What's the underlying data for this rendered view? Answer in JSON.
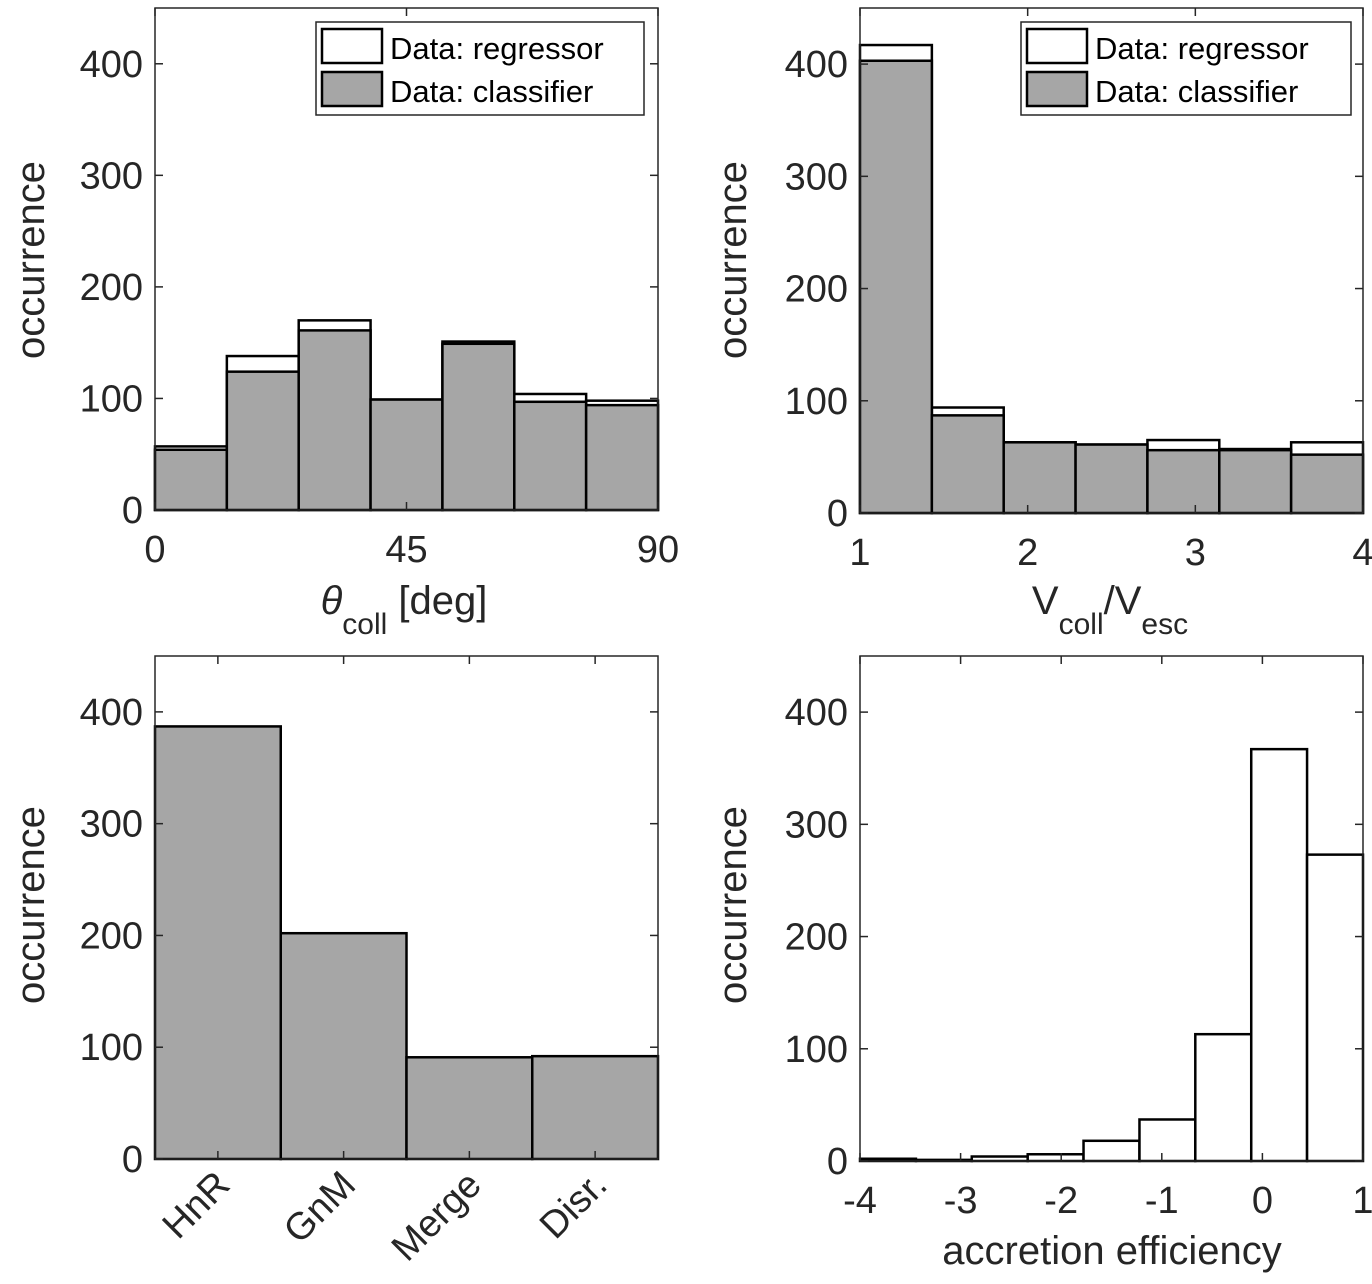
{
  "colors": {
    "regressor_fill": "#ffffff",
    "classifier_fill": "#a6a6a6",
    "edge": "#000000",
    "axis": "#262626"
  },
  "chart_data": [
    {
      "type": "bar",
      "name": "theta-coll-histogram",
      "xlabel": {
        "symbol": "θ",
        "subscript": "coll",
        "suffix": " [deg]"
      },
      "ylabel": "occurrence",
      "xlim": [
        0,
        90
      ],
      "ylim": [
        0,
        450
      ],
      "xticks": [
        0,
        45,
        90
      ],
      "xtick_labels": [
        "0",
        "45",
        "90"
      ],
      "yticks": [
        0,
        100,
        200,
        300,
        400
      ],
      "ytick_labels": [
        "0",
        "100",
        "200",
        "300",
        "400"
      ],
      "bin_edges": [
        0,
        12.857,
        25.714,
        38.571,
        51.429,
        64.286,
        77.143,
        90
      ],
      "series": [
        {
          "name": "Data: regressor",
          "style": "regressor",
          "values": [
            57,
            138,
            170,
            99,
            151,
            104,
            98
          ]
        },
        {
          "name": "Data: classifier",
          "style": "classifier",
          "values": [
            54,
            124,
            161,
            99,
            149,
            97,
            94
          ]
        }
      ],
      "legend": {
        "location": "top-right",
        "entries": [
          "Data: regressor",
          "Data: classifier"
        ]
      }
    },
    {
      "type": "bar",
      "name": "v-ratio-histogram",
      "xlabel": {
        "main1": "V",
        "sub1": "coll",
        "main2": "/V",
        "sub2": "esc"
      },
      "ylabel": "occurrence",
      "xlim": [
        1,
        4
      ],
      "ylim": [
        0,
        450
      ],
      "xticks": [
        1,
        2,
        3,
        4
      ],
      "xtick_labels": [
        "1",
        "2",
        "3",
        "4"
      ],
      "yticks": [
        0,
        100,
        200,
        300,
        400
      ],
      "ytick_labels": [
        "0",
        "100",
        "200",
        "300",
        "400"
      ],
      "bin_edges": [
        1,
        1.4286,
        1.8571,
        2.2857,
        2.7143,
        3.1429,
        3.5714,
        4
      ],
      "series": [
        {
          "name": "Data: regressor",
          "style": "regressor",
          "values": [
            417,
            94,
            63,
            61,
            65,
            57,
            63
          ]
        },
        {
          "name": "Data: classifier",
          "style": "classifier",
          "values": [
            403,
            87,
            63,
            61,
            56,
            56,
            52
          ]
        }
      ],
      "legend": {
        "location": "top-right",
        "entries": [
          "Data: regressor",
          "Data: classifier"
        ]
      }
    },
    {
      "type": "bar",
      "name": "outcome-class-histogram",
      "xlabel": "",
      "ylabel": "occurrence",
      "xlim": [
        0,
        4
      ],
      "ylim": [
        0,
        450
      ],
      "xticks": [
        0.5,
        1.5,
        2.5,
        3.5
      ],
      "xtick_labels": [
        "HnR",
        "GnM",
        "Merge",
        "Disr."
      ],
      "xtick_rotation": -45,
      "yticks": [
        0,
        100,
        200,
        300,
        400
      ],
      "ytick_labels": [
        "0",
        "100",
        "200",
        "300",
        "400"
      ],
      "bin_edges": [
        0,
        1,
        2,
        3,
        4
      ],
      "series": [
        {
          "name": "classifier",
          "style": "classifier",
          "values": [
            387,
            202,
            91,
            92
          ]
        }
      ]
    },
    {
      "type": "bar",
      "name": "accretion-efficiency-histogram",
      "xlabel": "accretion efficiency",
      "ylabel": "occurrence",
      "xlim": [
        -4,
        1
      ],
      "ylim": [
        0,
        450
      ],
      "xticks": [
        -4,
        -3,
        -2,
        -1,
        0,
        1
      ],
      "xtick_labels": [
        "-4",
        "-3",
        "-2",
        "-1",
        "0",
        "1"
      ],
      "yticks": [
        0,
        100,
        200,
        300,
        400
      ],
      "ytick_labels": [
        "0",
        "100",
        "200",
        "300",
        "400"
      ],
      "bin_edges": [
        -4,
        -3.444,
        -2.889,
        -2.333,
        -1.778,
        -1.222,
        -0.667,
        -0.111,
        0.444,
        1
      ],
      "series": [
        {
          "name": "regressor",
          "style": "regressor",
          "values": [
            2,
            1,
            4,
            6,
            18,
            37,
            113,
            367,
            273
          ]
        }
      ]
    }
  ]
}
